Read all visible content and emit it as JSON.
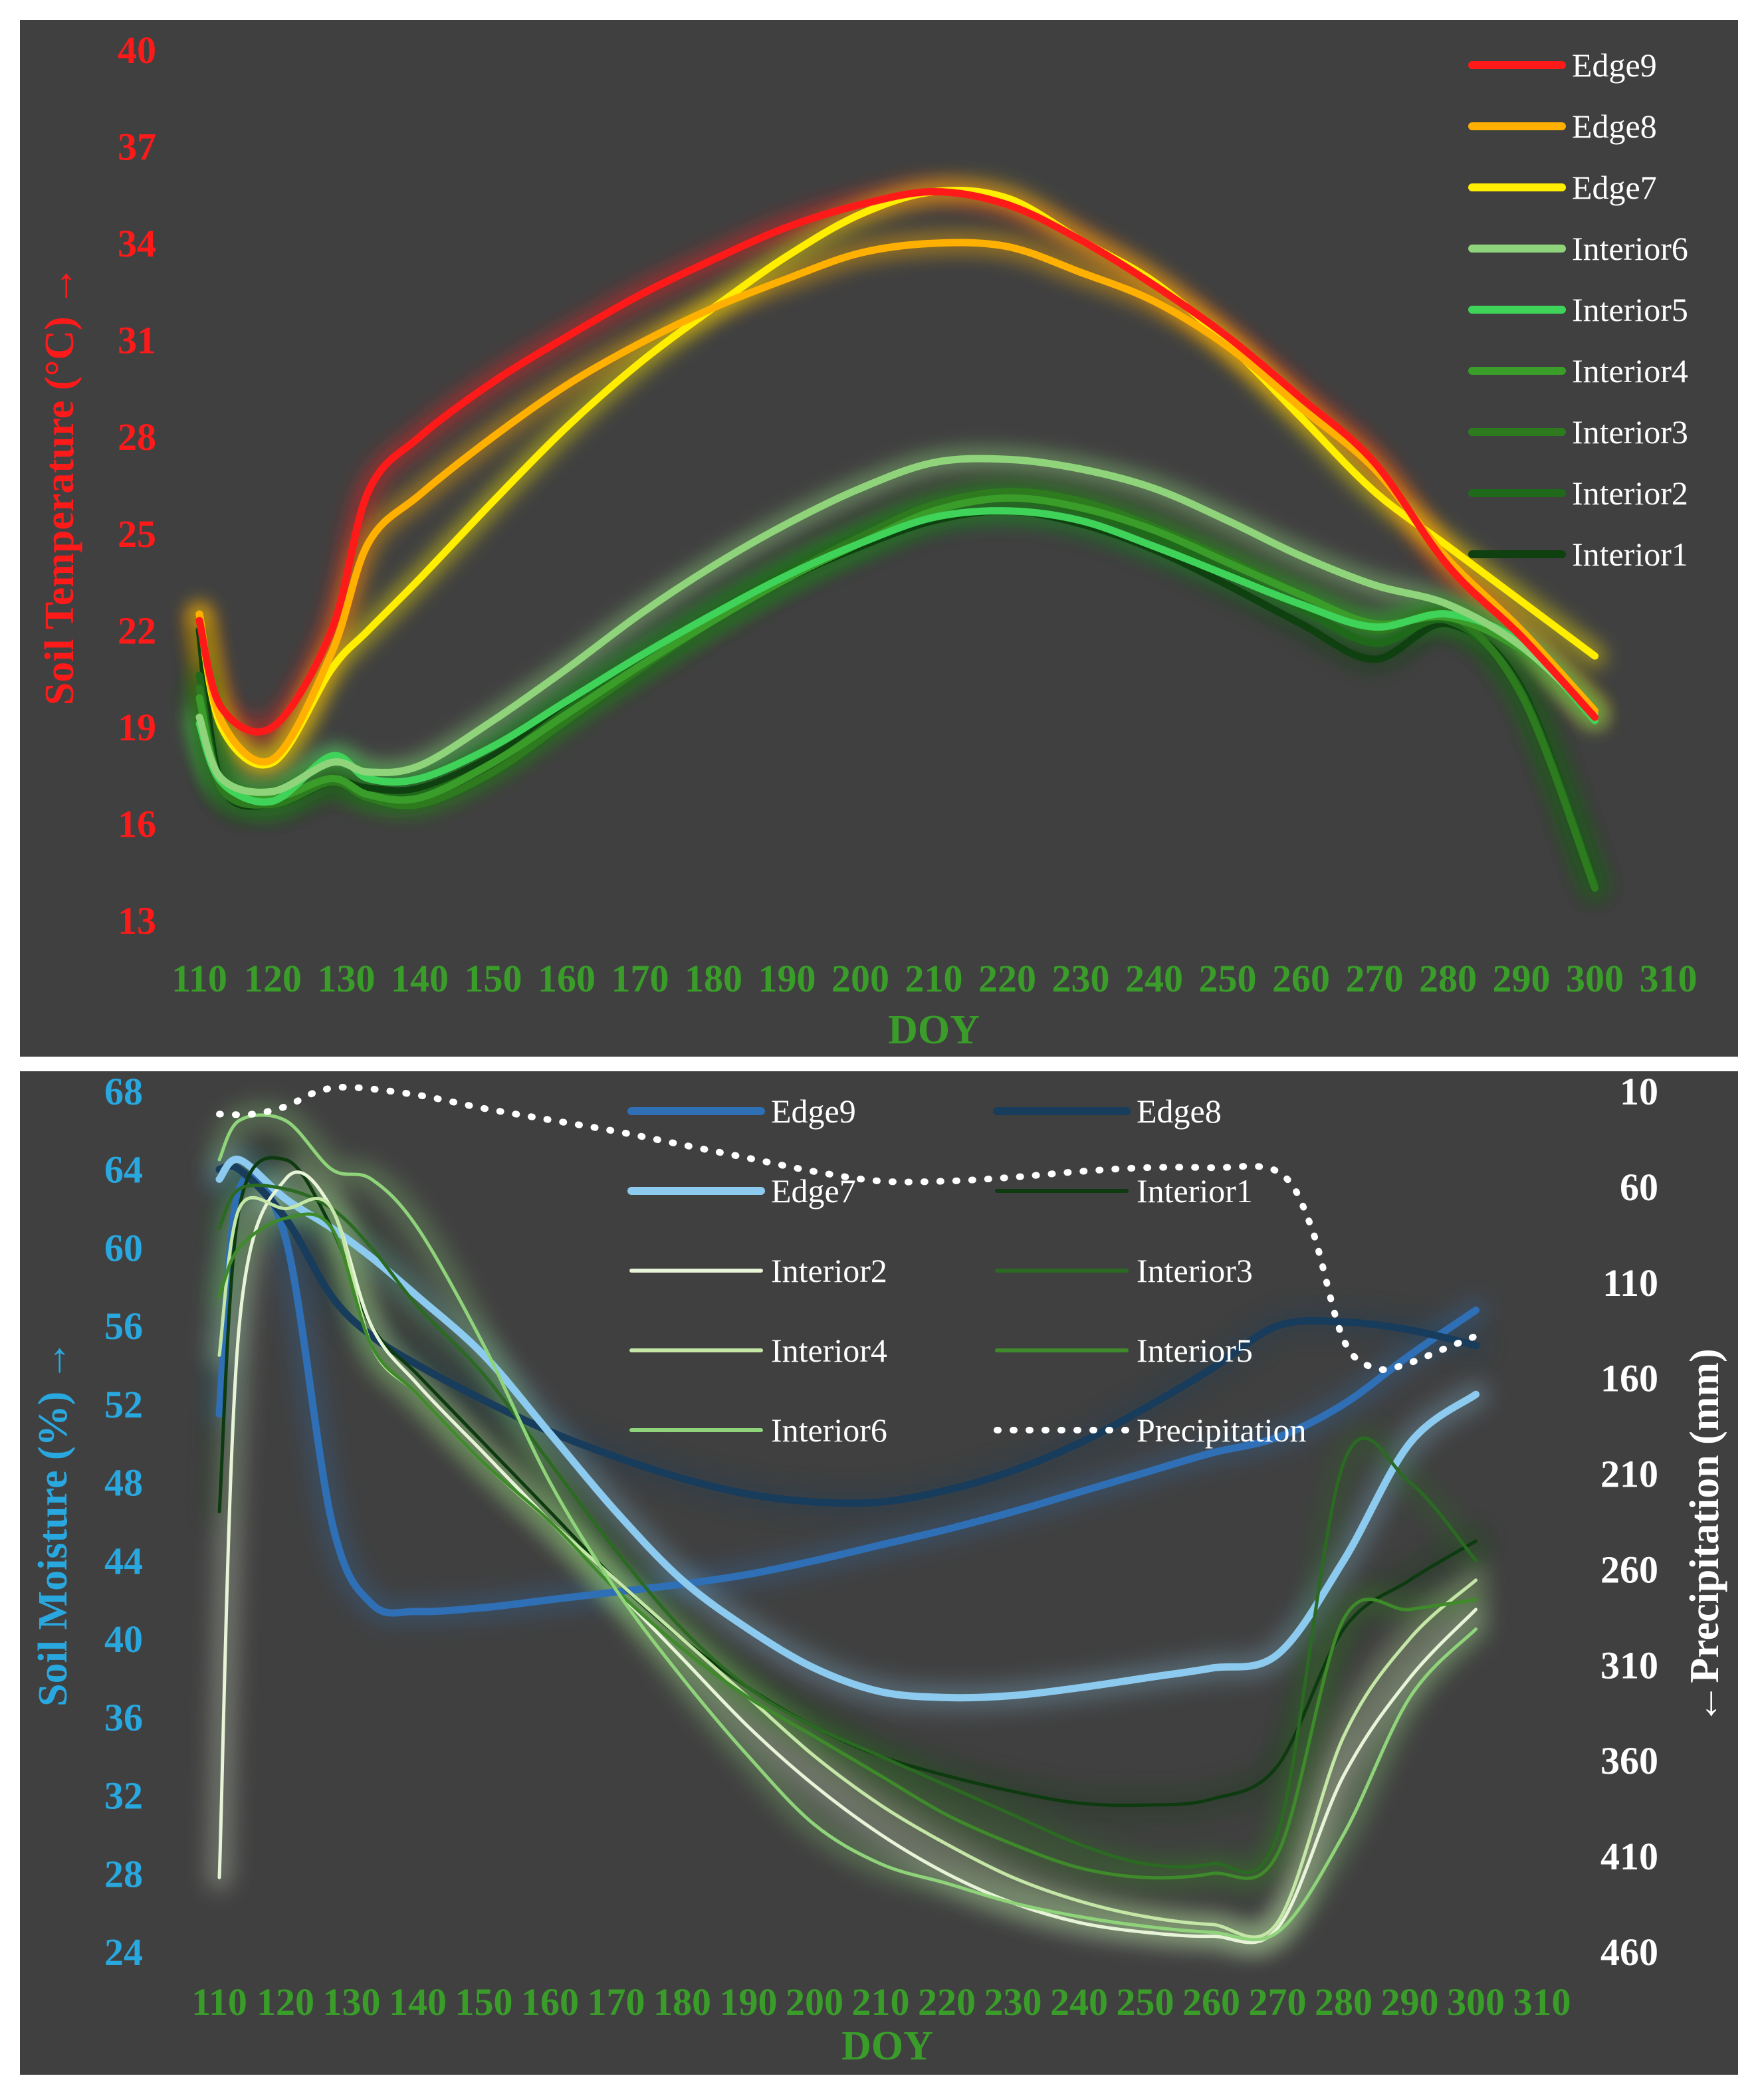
{
  "chart_data": [
    {
      "type": "line",
      "title": "",
      "xlabel": "DOY",
      "ylabel": "Soil Temperature (°C) →",
      "xlim": [
        110,
        310
      ],
      "ylim": [
        13,
        40
      ],
      "xticks": [
        "110",
        "120",
        "130",
        "140",
        "150",
        "160",
        "170",
        "180",
        "190",
        "200",
        "210",
        "220",
        "230",
        "240",
        "250",
        "260",
        "270",
        "280",
        "290",
        "300",
        "310"
      ],
      "yticks": [
        "13",
        "16",
        "19",
        "22",
        "25",
        "28",
        "31",
        "34",
        "37",
        "40"
      ],
      "legend_position": "top-right",
      "series": [
        {
          "name": "Edge9",
          "color": "#ff1a1a",
          "x": [
            110,
            113,
            120,
            128,
            133,
            140,
            150,
            160,
            170,
            180,
            190,
            200,
            210,
            220,
            230,
            240,
            250,
            260,
            270,
            280,
            290,
            300
          ],
          "y": [
            22.3,
            19.6,
            19.0,
            22.0,
            26.3,
            28.0,
            29.7,
            31.1,
            32.4,
            33.5,
            34.5,
            35.2,
            35.6,
            35.2,
            34.1,
            32.7,
            31.1,
            29.2,
            27.2,
            24.0,
            21.8,
            19.3
          ]
        },
        {
          "name": "Edge8",
          "color": "#ffb000",
          "x": [
            110,
            113,
            120,
            128,
            133,
            140,
            150,
            160,
            170,
            180,
            190,
            200,
            210,
            220,
            230,
            240,
            250,
            260,
            270,
            280,
            290,
            300
          ],
          "y": [
            22.5,
            19.2,
            18.0,
            21.3,
            24.7,
            26.2,
            28.0,
            29.6,
            30.9,
            32.0,
            32.9,
            33.7,
            34.0,
            33.9,
            33.1,
            32.2,
            30.8,
            28.9,
            27.0,
            24.2,
            22.0,
            19.5
          ]
        },
        {
          "name": "Edge7",
          "color": "#ffee00",
          "x": [
            110,
            113,
            120,
            128,
            133,
            140,
            150,
            160,
            170,
            180,
            190,
            200,
            210,
            220,
            230,
            240,
            250,
            260,
            270,
            280,
            290,
            300
          ],
          "y": [
            22.5,
            19.0,
            17.9,
            20.8,
            22.0,
            23.6,
            26.0,
            28.3,
            30.3,
            32.0,
            33.6,
            34.9,
            35.6,
            35.4,
            34.1,
            32.8,
            30.9,
            28.6,
            26.3,
            24.6,
            22.9,
            21.2
          ]
        },
        {
          "name": "Interior6",
          "color": "#8fd47a",
          "x": [
            110,
            113,
            120,
            128,
            133,
            140,
            150,
            160,
            170,
            180,
            190,
            200,
            210,
            220,
            230,
            240,
            250,
            260,
            270,
            280,
            290,
            300
          ],
          "y": [
            19.3,
            17.4,
            17.0,
            17.9,
            17.6,
            17.8,
            19.2,
            20.8,
            22.5,
            24.0,
            25.3,
            26.4,
            27.2,
            27.3,
            27.0,
            26.4,
            25.4,
            24.3,
            23.4,
            22.8,
            21.5,
            19.4
          ]
        },
        {
          "name": "Interior5",
          "color": "#3fd35a",
          "x": [
            110,
            113,
            120,
            128,
            133,
            140,
            150,
            160,
            170,
            180,
            190,
            200,
            210,
            220,
            230,
            240,
            250,
            260,
            270,
            280,
            290,
            300
          ],
          "y": [
            19.1,
            17.3,
            16.7,
            18.1,
            17.4,
            17.4,
            18.4,
            19.8,
            21.2,
            22.5,
            23.7,
            24.7,
            25.5,
            25.7,
            25.4,
            24.6,
            23.7,
            22.8,
            22.1,
            22.5,
            21.6,
            19.2
          ]
        },
        {
          "name": "Interior4",
          "color": "#3a9d2a",
          "x": [
            110,
            113,
            120,
            128,
            133,
            140,
            150,
            160,
            170,
            180,
            190,
            200,
            210,
            220,
            230,
            240,
            250,
            260,
            270,
            280,
            290,
            300
          ],
          "y": [
            19.9,
            17.3,
            16.8,
            17.4,
            16.9,
            16.8,
            17.9,
            19.4,
            20.9,
            22.3,
            23.6,
            24.7,
            25.7,
            26.1,
            25.8,
            25.1,
            24.1,
            23.1,
            22.2,
            22.4,
            21.4,
            19.5
          ]
        },
        {
          "name": "Interior3",
          "color": "#2d7a1f",
          "x": [
            110,
            113,
            120,
            128,
            133,
            140,
            150,
            160,
            170,
            180,
            190,
            200,
            210,
            220,
            230,
            240,
            250,
            260,
            270,
            280,
            290,
            300
          ],
          "y": [
            20.2,
            17.1,
            16.6,
            17.3,
            16.8,
            16.6,
            17.6,
            19.2,
            20.8,
            22.3,
            23.7,
            24.9,
            25.9,
            26.3,
            26.0,
            25.2,
            24.2,
            23.1,
            22.0,
            22.5,
            20.0,
            14.0
          ]
        },
        {
          "name": "Interior2",
          "color": "#1f6a1a",
          "x": [
            110,
            113,
            120,
            128,
            133,
            140,
            150,
            160,
            170,
            180,
            190,
            200,
            210,
            220,
            230,
            240,
            250,
            260,
            270,
            280,
            290,
            300
          ],
          "y": [
            20.6,
            17.2,
            16.6,
            17.3,
            16.9,
            16.9,
            17.9,
            19.5,
            21.0,
            22.5,
            23.8,
            24.9,
            25.8,
            26.1,
            25.7,
            24.9,
            23.8,
            22.7,
            21.6,
            22.3,
            20.1,
            14.1
          ]
        },
        {
          "name": "Interior1",
          "color": "#0f4010",
          "x": [
            110,
            113,
            120,
            128,
            133,
            140,
            150,
            160,
            170,
            180,
            190,
            200,
            210,
            220,
            230,
            240,
            250,
            260,
            270,
            280,
            290,
            300
          ],
          "y": [
            22.0,
            17.2,
            16.6,
            17.3,
            17.1,
            17.1,
            18.1,
            19.6,
            21.0,
            22.4,
            23.6,
            24.6,
            25.4,
            25.7,
            25.3,
            24.5,
            23.4,
            22.2,
            21.1,
            22.2,
            20.2,
            14.0
          ]
        }
      ]
    },
    {
      "type": "line",
      "title": "",
      "xlabel": "DOY",
      "ylabel": "Soil Moisture (%) →",
      "ylabel_right": "←Precipitation (mm)",
      "xlim": [
        110,
        310
      ],
      "ylim": [
        24,
        68
      ],
      "ylim_right": [
        10,
        460
      ],
      "right_axis_inverted": true,
      "xticks": [
        "110",
        "120",
        "130",
        "140",
        "150",
        "160",
        "170",
        "180",
        "190",
        "200",
        "210",
        "220",
        "230",
        "240",
        "250",
        "260",
        "270",
        "280",
        "290",
        "300",
        "310"
      ],
      "yticks": [
        "24",
        "28",
        "32",
        "36",
        "40",
        "44",
        "48",
        "52",
        "56",
        "60",
        "64",
        "68"
      ],
      "yticks_right": [
        "10",
        "60",
        "110",
        "160",
        "210",
        "260",
        "310",
        "360",
        "410",
        "460"
      ],
      "legend_position": "top-center",
      "series": [
        {
          "name": "Edge9",
          "color": "#2f6fb5",
          "axis": "left",
          "x": [
            110,
            113,
            120,
            127,
            133,
            140,
            150,
            160,
            170,
            180,
            190,
            200,
            210,
            220,
            230,
            240,
            250,
            260,
            270,
            280,
            290,
            300
          ],
          "y": [
            51.5,
            63.0,
            60.5,
            46.0,
            41.8,
            41.4,
            41.6,
            42.0,
            42.4,
            42.8,
            43.3,
            44.0,
            44.8,
            45.6,
            46.5,
            47.5,
            48.5,
            49.5,
            50.3,
            52.0,
            54.5,
            56.8
          ]
        },
        {
          "name": "Edge8",
          "color": "#173c5c",
          "axis": "left",
          "x": [
            110,
            113,
            120,
            127,
            133,
            140,
            150,
            160,
            170,
            180,
            190,
            200,
            210,
            220,
            230,
            240,
            250,
            260,
            270,
            280,
            290,
            300
          ],
          "y": [
            64.0,
            64.0,
            61.5,
            57.5,
            55.5,
            54.0,
            52.2,
            50.6,
            49.3,
            48.2,
            47.4,
            47.0,
            47.0,
            47.6,
            48.6,
            50.0,
            51.8,
            53.8,
            56.0,
            56.2,
            55.8,
            55.0
          ]
        },
        {
          "name": "Edge7",
          "color": "#8ccbef",
          "axis": "left",
          "x": [
            110,
            113,
            120,
            127,
            133,
            140,
            150,
            160,
            170,
            180,
            190,
            200,
            210,
            220,
            230,
            240,
            250,
            260,
            270,
            280,
            290,
            300
          ],
          "y": [
            63.5,
            64.5,
            62.5,
            61.0,
            59.5,
            57.5,
            54.5,
            50.5,
            46.5,
            43.0,
            40.5,
            38.5,
            37.3,
            37.0,
            37.1,
            37.5,
            38.0,
            38.5,
            39.2,
            44.0,
            50.0,
            52.5
          ]
        },
        {
          "name": "Interior1",
          "color": "#0e3a10",
          "axis": "left",
          "x": [
            110,
            113,
            120,
            127,
            133,
            140,
            150,
            160,
            170,
            180,
            190,
            200,
            210,
            220,
            230,
            240,
            250,
            260,
            270,
            280,
            290,
            300
          ],
          "y": [
            46.5,
            62.0,
            64.5,
            61.0,
            56.0,
            53.5,
            50.0,
            46.5,
            43.0,
            40.0,
            37.5,
            35.5,
            34.0,
            33.0,
            32.2,
            31.6,
            31.5,
            31.8,
            33.5,
            40.5,
            43.0,
            45.0
          ]
        },
        {
          "name": "Interior2",
          "color": "#e8f4d8",
          "axis": "left",
          "x": [
            110,
            113,
            120,
            127,
            133,
            140,
            150,
            160,
            170,
            180,
            190,
            200,
            210,
            220,
            230,
            240,
            250,
            260,
            270,
            280,
            290,
            300
          ],
          "y": [
            27.8,
            56.0,
            63.5,
            62.0,
            56.0,
            53.0,
            49.5,
            46.0,
            42.5,
            39.0,
            35.5,
            32.5,
            30.0,
            28.0,
            26.5,
            25.5,
            25.0,
            24.8,
            25.2,
            33.0,
            38.0,
            41.5
          ]
        },
        {
          "name": "Interior3",
          "color": "#2b6a22",
          "axis": "left",
          "x": [
            110,
            113,
            120,
            127,
            133,
            140,
            150,
            160,
            170,
            180,
            190,
            200,
            210,
            220,
            230,
            240,
            250,
            260,
            270,
            280,
            290,
            300
          ],
          "y": [
            61.0,
            63.0,
            63.0,
            62.0,
            60.0,
            57.0,
            53.5,
            49.0,
            44.5,
            40.5,
            37.5,
            35.5,
            34.0,
            32.5,
            31.0,
            29.5,
            28.5,
            28.5,
            30.0,
            49.0,
            48.0,
            44.0
          ]
        },
        {
          "name": "Interior4",
          "color": "#c4e6a6",
          "axis": "left",
          "x": [
            110,
            113,
            120,
            127,
            133,
            140,
            150,
            160,
            170,
            180,
            190,
            200,
            210,
            220,
            230,
            240,
            250,
            260,
            270,
            280,
            290,
            300
          ],
          "y": [
            54.5,
            62.0,
            62.0,
            62.0,
            55.0,
            52.5,
            49.0,
            46.0,
            43.0,
            40.0,
            37.0,
            34.0,
            31.5,
            29.5,
            27.8,
            26.6,
            25.8,
            25.4,
            25.5,
            35.0,
            40.0,
            43.0
          ]
        },
        {
          "name": "Interior5",
          "color": "#3f8a2a",
          "axis": "left",
          "x": [
            110,
            113,
            120,
            127,
            133,
            140,
            150,
            160,
            170,
            180,
            190,
            200,
            210,
            220,
            230,
            240,
            250,
            260,
            270,
            280,
            290,
            300
          ],
          "y": [
            57.5,
            60.0,
            61.5,
            61.0,
            55.0,
            52.5,
            49.0,
            46.0,
            42.5,
            39.5,
            37.0,
            35.0,
            33.0,
            31.0,
            29.5,
            28.3,
            27.8,
            28.0,
            29.0,
            41.0,
            41.5,
            42.0
          ]
        },
        {
          "name": "Interior6",
          "color": "#8fd47a",
          "axis": "left",
          "x": [
            110,
            113,
            120,
            127,
            133,
            140,
            150,
            160,
            170,
            180,
            190,
            200,
            210,
            220,
            230,
            240,
            250,
            260,
            270,
            280,
            290,
            300
          ],
          "y": [
            64.5,
            66.5,
            66.5,
            64.0,
            63.5,
            61.0,
            55.0,
            48.0,
            42.5,
            38.0,
            34.0,
            30.5,
            28.5,
            27.5,
            26.5,
            25.8,
            25.3,
            25.0,
            25.0,
            30.0,
            37.0,
            40.5
          ]
        },
        {
          "name": "Precipitation",
          "color": "#ffffff",
          "dashed": true,
          "axis": "right",
          "x": [
            110,
            115,
            120,
            125,
            130,
            140,
            150,
            160,
            170,
            180,
            190,
            200,
            210,
            220,
            230,
            240,
            250,
            260,
            270,
            275,
            280,
            285,
            290,
            295,
            300
          ],
          "y": [
            22,
            22,
            18,
            10,
            8,
            12,
            19,
            25,
            31,
            38,
            45,
            52,
            57,
            57,
            55,
            52,
            50,
            50,
            52,
            80,
            140,
            155,
            152,
            145,
            138
          ]
        }
      ]
    }
  ]
}
